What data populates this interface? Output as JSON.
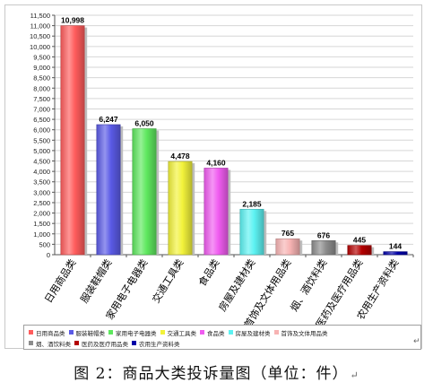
{
  "caption": {
    "text": "图 2：商品大类投诉量图（单位：件）",
    "paragraph_mark": "↵"
  },
  "stray_mark": "↵",
  "chart_data": {
    "type": "bar",
    "title": "",
    "xlabel": "",
    "ylabel": "",
    "ylim": [
      0,
      11500
    ],
    "y_tick_step": 500,
    "y_tick_labels": [
      "0",
      "500",
      "1,000",
      "1,500",
      "2,000",
      "2,500",
      "3,000",
      "3,500",
      "4,000",
      "4,500",
      "5,000",
      "5,500",
      "6,000",
      "6,500",
      "7,000",
      "7,500",
      "8,000",
      "8,500",
      "9,000",
      "9,500",
      "10,000",
      "10,500",
      "11,000",
      "11,500"
    ],
    "grid": true,
    "legend_position": "bottom",
    "categories": [
      "日用商品类",
      "服装鞋帽类",
      "家用电子电器类",
      "交通工具类",
      "食品类",
      "房屋及建材类",
      "首饰及文体用品类",
      "烟、酒饮料类",
      "医药及医疗用品类",
      "农用生产资料类"
    ],
    "values": [
      10998,
      6247,
      6050,
      4478,
      4160,
      2185,
      765,
      676,
      445,
      144
    ],
    "value_labels": [
      "10,998",
      "6,247",
      "6,050",
      "4,478",
      "4,160",
      "2,185",
      "765",
      "676",
      "445",
      "144"
    ],
    "colors": [
      "#ff5c5c",
      "#5a5ae6",
      "#5ee85e",
      "#f2f23a",
      "#f05cf0",
      "#5cf2f2",
      "#f7b3b3",
      "#8c8c8c",
      "#b30000",
      "#0000a8"
    ]
  }
}
